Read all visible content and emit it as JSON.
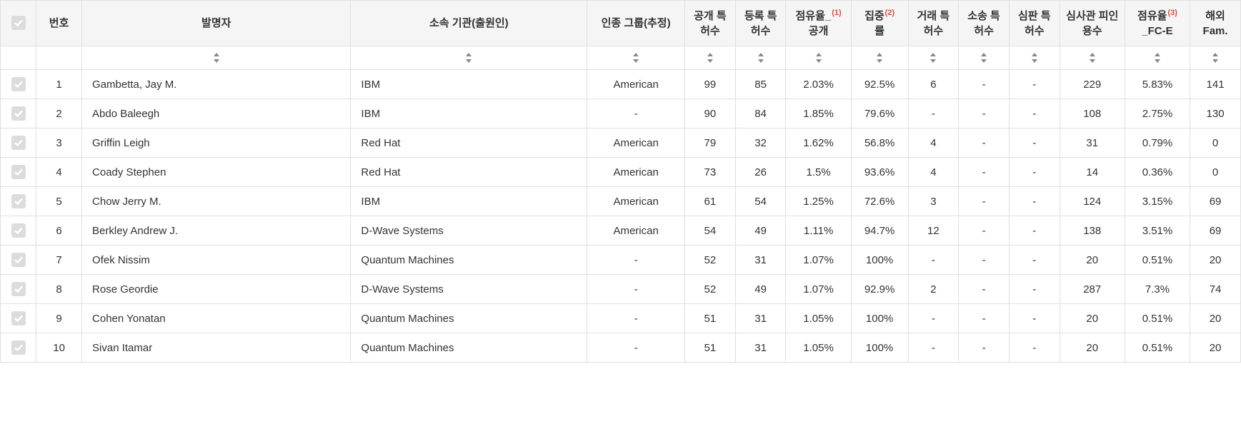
{
  "columns": {
    "no": "번호",
    "inventor": "발명자",
    "org": "소속 기관(출원인)",
    "group": "인종 그룹(추정)",
    "pub": "공개 특허수",
    "reg": "등록 특허수",
    "share1_pre": "점유율_",
    "share1_post": "공개",
    "share1_sup": "(1)",
    "conc_pre": "집중",
    "conc_post": "률",
    "conc_sup": "(2)",
    "trade": "거래 특허수",
    "lit": "소송 특허수",
    "trial": "심판 특허수",
    "cite": "심사관 피인용수",
    "share2_pre": "점유율",
    "share2_post": "_FC-E",
    "share2_sup": "(3)",
    "fam": "해외 Fam."
  },
  "rows": [
    {
      "no": "1",
      "inventor": "Gambetta, Jay M.",
      "org": "IBM",
      "group": "American",
      "pub": "99",
      "reg": "85",
      "share1": "2.03%",
      "conc": "92.5%",
      "trade": "6",
      "lit": "-",
      "trial": "-",
      "cite": "229",
      "share2": "5.83%",
      "fam": "141"
    },
    {
      "no": "2",
      "inventor": "Abdo Baleegh",
      "org": "IBM",
      "group": "-",
      "pub": "90",
      "reg": "84",
      "share1": "1.85%",
      "conc": "79.6%",
      "trade": "-",
      "lit": "-",
      "trial": "-",
      "cite": "108",
      "share2": "2.75%",
      "fam": "130"
    },
    {
      "no": "3",
      "inventor": "Griffin Leigh",
      "org": "Red Hat",
      "group": "American",
      "pub": "79",
      "reg": "32",
      "share1": "1.62%",
      "conc": "56.8%",
      "trade": "4",
      "lit": "-",
      "trial": "-",
      "cite": "31",
      "share2": "0.79%",
      "fam": "0"
    },
    {
      "no": "4",
      "inventor": "Coady Stephen",
      "org": "Red Hat",
      "group": "American",
      "pub": "73",
      "reg": "26",
      "share1": "1.5%",
      "conc": "93.6%",
      "trade": "4",
      "lit": "-",
      "trial": "-",
      "cite": "14",
      "share2": "0.36%",
      "fam": "0"
    },
    {
      "no": "5",
      "inventor": "Chow Jerry M.",
      "org": "IBM",
      "group": "American",
      "pub": "61",
      "reg": "54",
      "share1": "1.25%",
      "conc": "72.6%",
      "trade": "3",
      "lit": "-",
      "trial": "-",
      "cite": "124",
      "share2": "3.15%",
      "fam": "69"
    },
    {
      "no": "6",
      "inventor": "Berkley Andrew J.",
      "org": "D-Wave Systems",
      "group": "American",
      "pub": "54",
      "reg": "49",
      "share1": "1.11%",
      "conc": "94.7%",
      "trade": "12",
      "lit": "-",
      "trial": "-",
      "cite": "138",
      "share2": "3.51%",
      "fam": "69"
    },
    {
      "no": "7",
      "inventor": "Ofek Nissim",
      "org": "Quantum Machines",
      "group": "-",
      "pub": "52",
      "reg": "31",
      "share1": "1.07%",
      "conc": "100%",
      "trade": "-",
      "lit": "-",
      "trial": "-",
      "cite": "20",
      "share2": "0.51%",
      "fam": "20"
    },
    {
      "no": "8",
      "inventor": "Rose Geordie",
      "org": "D-Wave Systems",
      "group": "-",
      "pub": "52",
      "reg": "49",
      "share1": "1.07%",
      "conc": "92.9%",
      "trade": "2",
      "lit": "-",
      "trial": "-",
      "cite": "287",
      "share2": "7.3%",
      "fam": "74"
    },
    {
      "no": "9",
      "inventor": "Cohen Yonatan",
      "org": "Quantum Machines",
      "group": "-",
      "pub": "51",
      "reg": "31",
      "share1": "1.05%",
      "conc": "100%",
      "trade": "-",
      "lit": "-",
      "trial": "-",
      "cite": "20",
      "share2": "0.51%",
      "fam": "20"
    },
    {
      "no": "10",
      "inventor": "Sivan Itamar",
      "org": "Quantum Machines",
      "group": "-",
      "pub": "51",
      "reg": "31",
      "share1": "1.05%",
      "conc": "100%",
      "trade": "-",
      "lit": "-",
      "trial": "-",
      "cite": "20",
      "share2": "0.51%",
      "fam": "20"
    }
  ],
  "styling": {
    "header_bg": "#f5f5f5",
    "border_color": "#e0e0e0",
    "checkbox_bg": "#dcdcdc",
    "sup_color": "#e74c3c",
    "text_color": "#333333",
    "font_size": 15
  }
}
